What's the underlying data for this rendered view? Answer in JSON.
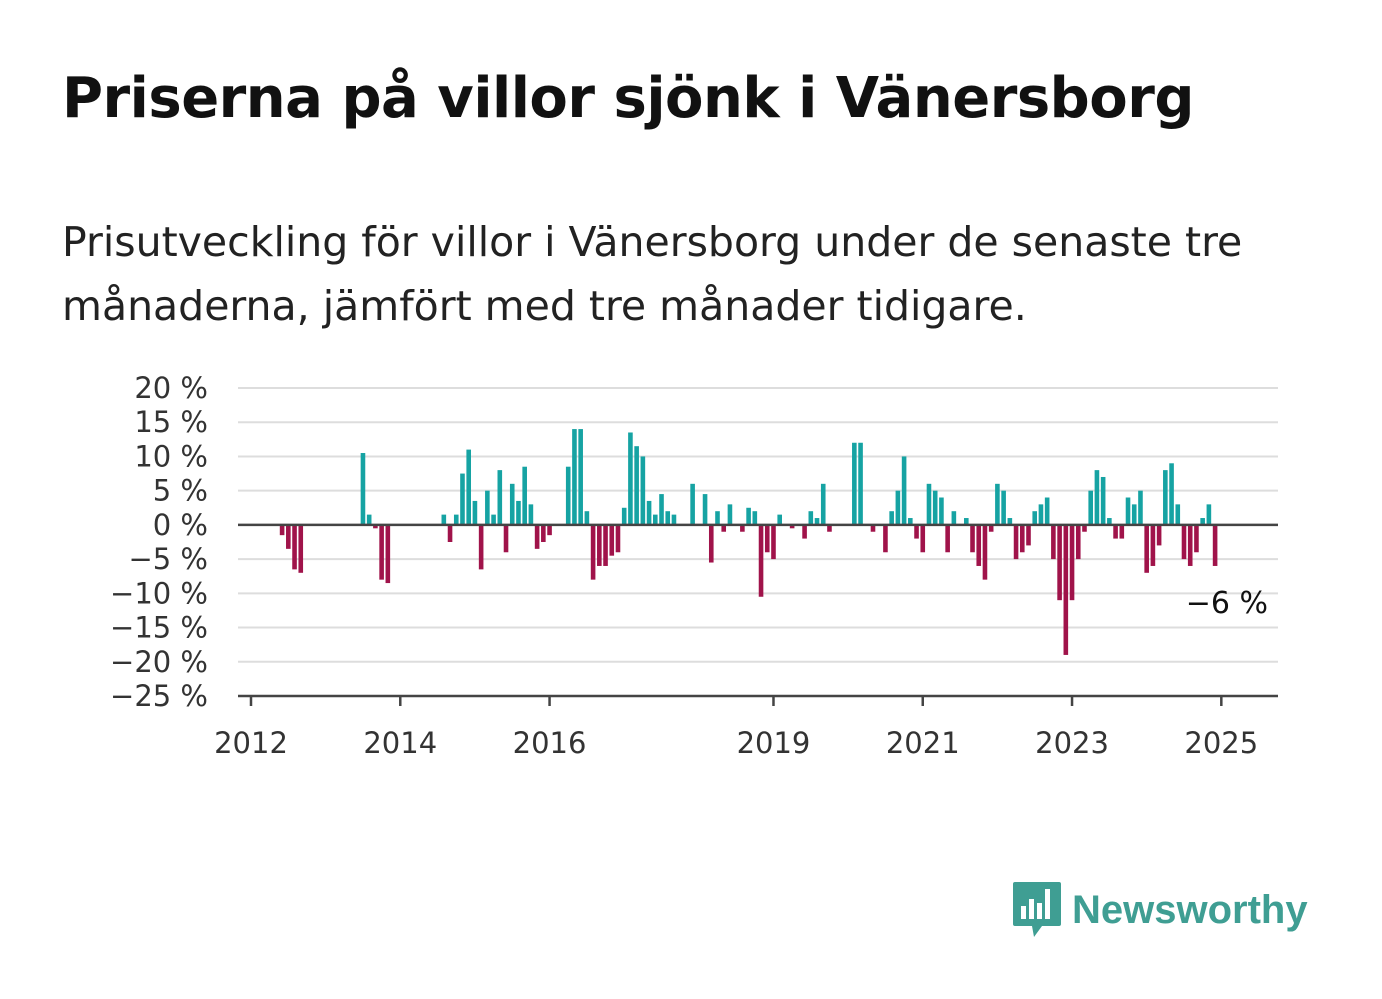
{
  "title": "Priserna på villor sjönk i Vänersborg",
  "subtitle": "Prisutveckling för villor i Vänersborg under de senaste tre månaderna, jämfört med tre månader tidigare.",
  "logo": {
    "text": "Newsworthy",
    "icon": "bar-chart-speech-bubble-icon",
    "color": "#3f9e93"
  },
  "colors": {
    "positive": "#16a3a3",
    "negative": "#a0134a",
    "grid": "#dddddd",
    "axis": "#444444"
  },
  "chart_data": {
    "type": "bar",
    "title": "Priserna på villor sjönk i Vänersborg",
    "xlabel": "",
    "ylabel": "",
    "unit": "%",
    "ylim": [
      -25,
      20
    ],
    "yticks": [
      20,
      15,
      10,
      5,
      0,
      -5,
      -10,
      -15,
      -20,
      -25
    ],
    "ytick_labels": [
      "20 %",
      "15 %",
      "10 %",
      "5 %",
      "0 %",
      "−5 %",
      "−10 %",
      "−15 %",
      "−20 %",
      "−25 %"
    ],
    "xticks": [
      {
        "label": "2012",
        "date": "2012-01"
      },
      {
        "label": "2014",
        "date": "2014-01"
      },
      {
        "label": "2016",
        "date": "2016-01"
      },
      {
        "label": "2019",
        "date": "2019-01"
      },
      {
        "label": "2021",
        "date": "2021-01"
      },
      {
        "label": "2023",
        "date": "2023-01"
      },
      {
        "label": "2025",
        "date": "2025-01"
      }
    ],
    "grid": true,
    "annotation": {
      "text": "−6 %",
      "date": "2025-02",
      "value": -6
    },
    "series": [
      {
        "values": [
          {
            "date": "2012-06",
            "value": -1.5
          },
          {
            "date": "2012-07",
            "value": -3.5
          },
          {
            "date": "2012-08",
            "value": -6.5
          },
          {
            "date": "2012-09",
            "value": -7
          },
          {
            "date": "2013-07",
            "value": 10.5
          },
          {
            "date": "2013-08",
            "value": 1.5
          },
          {
            "date": "2013-09",
            "value": -0.5
          },
          {
            "date": "2013-10",
            "value": -8
          },
          {
            "date": "2013-11",
            "value": -8.5
          },
          {
            "date": "2014-08",
            "value": 1.5
          },
          {
            "date": "2014-09",
            "value": -2.5
          },
          {
            "date": "2014-10",
            "value": 1.5
          },
          {
            "date": "2014-11",
            "value": 7.5
          },
          {
            "date": "2014-12",
            "value": 11
          },
          {
            "date": "2015-01",
            "value": 3.5
          },
          {
            "date": "2015-02",
            "value": -6.5
          },
          {
            "date": "2015-03",
            "value": 5
          },
          {
            "date": "2015-04",
            "value": 1.5
          },
          {
            "date": "2015-05",
            "value": 8
          },
          {
            "date": "2015-06",
            "value": -4
          },
          {
            "date": "2015-07",
            "value": 6
          },
          {
            "date": "2015-08",
            "value": 3.5
          },
          {
            "date": "2015-09",
            "value": 8.5
          },
          {
            "date": "2015-10",
            "value": 3
          },
          {
            "date": "2015-11",
            "value": -3.5
          },
          {
            "date": "2015-12",
            "value": -2.5
          },
          {
            "date": "2016-01",
            "value": -1.5
          },
          {
            "date": "2016-04",
            "value": 8.5
          },
          {
            "date": "2016-05",
            "value": 14
          },
          {
            "date": "2016-06",
            "value": 14
          },
          {
            "date": "2016-07",
            "value": 2
          },
          {
            "date": "2016-08",
            "value": -8
          },
          {
            "date": "2016-09",
            "value": -6
          },
          {
            "date": "2016-10",
            "value": -6
          },
          {
            "date": "2016-11",
            "value": -4.5
          },
          {
            "date": "2016-12",
            "value": -4
          },
          {
            "date": "2017-01",
            "value": 2.5
          },
          {
            "date": "2017-02",
            "value": 13.5
          },
          {
            "date": "2017-03",
            "value": 11.5
          },
          {
            "date": "2017-04",
            "value": 10
          },
          {
            "date": "2017-05",
            "value": 3.5
          },
          {
            "date": "2017-06",
            "value": 1.5
          },
          {
            "date": "2017-07",
            "value": 4.5
          },
          {
            "date": "2017-08",
            "value": 2
          },
          {
            "date": "2017-09",
            "value": 1.5
          },
          {
            "date": "2017-12",
            "value": 6
          },
          {
            "date": "2018-02",
            "value": 4.5
          },
          {
            "date": "2018-03",
            "value": -5.5
          },
          {
            "date": "2018-04",
            "value": 2
          },
          {
            "date": "2018-05",
            "value": -1
          },
          {
            "date": "2018-06",
            "value": 3
          },
          {
            "date": "2018-08",
            "value": -1
          },
          {
            "date": "2018-09",
            "value": 2.5
          },
          {
            "date": "2018-10",
            "value": 2
          },
          {
            "date": "2018-11",
            "value": -10.5
          },
          {
            "date": "2018-12",
            "value": -4
          },
          {
            "date": "2019-01",
            "value": -5
          },
          {
            "date": "2019-02",
            "value": 1.5
          },
          {
            "date": "2019-04",
            "value": -0.5
          },
          {
            "date": "2019-06",
            "value": -2
          },
          {
            "date": "2019-07",
            "value": 2
          },
          {
            "date": "2019-08",
            "value": 1
          },
          {
            "date": "2019-09",
            "value": 6
          },
          {
            "date": "2019-10",
            "value": -1
          },
          {
            "date": "2020-02",
            "value": 12
          },
          {
            "date": "2020-03",
            "value": 12
          },
          {
            "date": "2020-05",
            "value": -1
          },
          {
            "date": "2020-07",
            "value": -4
          },
          {
            "date": "2020-08",
            "value": 2
          },
          {
            "date": "2020-09",
            "value": 5
          },
          {
            "date": "2020-10",
            "value": 10
          },
          {
            "date": "2020-11",
            "value": 1
          },
          {
            "date": "2020-12",
            "value": -2
          },
          {
            "date": "2021-01",
            "value": -4
          },
          {
            "date": "2021-02",
            "value": 6
          },
          {
            "date": "2021-03",
            "value": 5
          },
          {
            "date": "2021-04",
            "value": 4
          },
          {
            "date": "2021-05",
            "value": -4
          },
          {
            "date": "2021-06",
            "value": 2
          },
          {
            "date": "2021-08",
            "value": 1
          },
          {
            "date": "2021-09",
            "value": -4
          },
          {
            "date": "2021-10",
            "value": -6
          },
          {
            "date": "2021-11",
            "value": -8
          },
          {
            "date": "2021-12",
            "value": -1
          },
          {
            "date": "2022-01",
            "value": 6
          },
          {
            "date": "2022-02",
            "value": 5
          },
          {
            "date": "2022-03",
            "value": 1
          },
          {
            "date": "2022-04",
            "value": -5
          },
          {
            "date": "2022-05",
            "value": -4
          },
          {
            "date": "2022-06",
            "value": -3
          },
          {
            "date": "2022-07",
            "value": 2
          },
          {
            "date": "2022-08",
            "value": 3
          },
          {
            "date": "2022-09",
            "value": 4
          },
          {
            "date": "2022-10",
            "value": -5
          },
          {
            "date": "2022-11",
            "value": -11
          },
          {
            "date": "2022-12",
            "value": -19
          },
          {
            "date": "2023-01",
            "value": -11
          },
          {
            "date": "2023-02",
            "value": -5
          },
          {
            "date": "2023-03",
            "value": -1
          },
          {
            "date": "2023-04",
            "value": 5
          },
          {
            "date": "2023-05",
            "value": 8
          },
          {
            "date": "2023-06",
            "value": 7
          },
          {
            "date": "2023-07",
            "value": 1
          },
          {
            "date": "2023-08",
            "value": -2
          },
          {
            "date": "2023-09",
            "value": -2
          },
          {
            "date": "2023-10",
            "value": 4
          },
          {
            "date": "2023-11",
            "value": 3
          },
          {
            "date": "2023-12",
            "value": 5
          },
          {
            "date": "2024-01",
            "value": -7
          },
          {
            "date": "2024-02",
            "value": -6
          },
          {
            "date": "2024-03",
            "value": -3
          },
          {
            "date": "2024-04",
            "value": 8
          },
          {
            "date": "2024-05",
            "value": 9
          },
          {
            "date": "2024-06",
            "value": 3
          },
          {
            "date": "2024-07",
            "value": -5
          },
          {
            "date": "2024-08",
            "value": -6
          },
          {
            "date": "2024-09",
            "value": -4
          },
          {
            "date": "2024-10",
            "value": 1
          },
          {
            "date": "2024-11",
            "value": 3
          },
          {
            "date": "2024-12",
            "value": -6
          }
        ]
      }
    ]
  }
}
